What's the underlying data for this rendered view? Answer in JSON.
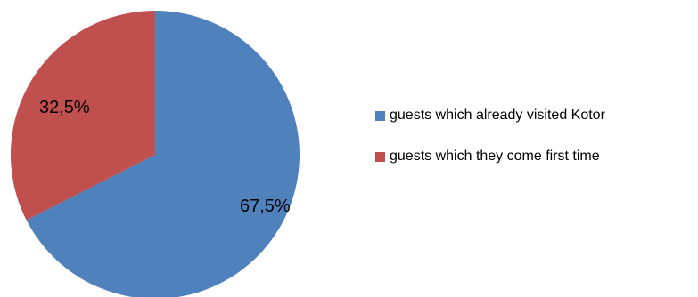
{
  "chart_data": {
    "type": "pie",
    "slices": [
      {
        "label": "guests which already visited Kotor",
        "value": 67.5,
        "display": "67,5%",
        "color": "#4F81BD"
      },
      {
        "label": "guests which they come first time",
        "value": 32.5,
        "display": "32,5%",
        "color": "#C0504D"
      }
    ],
    "legend_placement": "right"
  }
}
